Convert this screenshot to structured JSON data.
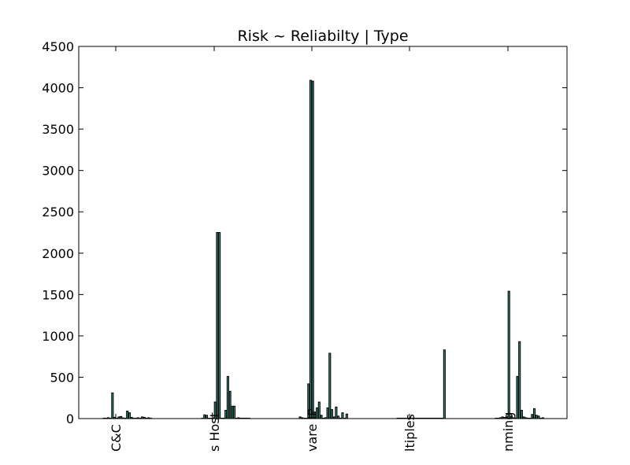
{
  "chart_data": {
    "type": "bar",
    "title": "Risk ~ Reliabilty | Type",
    "xlabel": "",
    "ylabel": "",
    "ylim": [
      0,
      4500
    ],
    "yticks": [
      0,
      500,
      1000,
      1500,
      2000,
      2500,
      3000,
      3500,
      4000,
      4500
    ],
    "grid": false,
    "categories": [
      "C&C",
      "s Host",
      "vare IP",
      "ltiples",
      "nming"
    ],
    "groups": [
      {
        "category": "C&C",
        "values": [
          5,
          5,
          10,
          5,
          310,
          15,
          5,
          20,
          25,
          8,
          5,
          90,
          70,
          15,
          5,
          5,
          10,
          5,
          20,
          15,
          5,
          10,
          5
        ]
      },
      {
        "category": "s Host",
        "values": [
          5,
          45,
          40,
          5,
          5,
          10,
          200,
          2250,
          2250,
          5,
          5,
          100,
          510,
          330,
          150,
          150,
          5,
          10,
          5,
          5,
          5,
          5,
          5
        ]
      },
      {
        "category": "vare IP",
        "values": [
          20,
          10,
          5,
          5,
          420,
          4090,
          4080,
          80,
          130,
          200,
          40,
          5,
          10,
          130,
          790,
          110,
          20,
          140,
          30,
          5,
          70,
          5,
          55
        ]
      },
      {
        "category": "ltiples",
        "values": [
          5,
          5,
          5,
          5,
          5,
          5,
          5,
          5,
          5,
          5,
          5,
          5,
          5,
          5,
          5,
          5,
          5,
          5,
          5,
          5,
          5,
          5,
          830
        ]
      },
      {
        "category": "nming",
        "values": [
          5,
          5,
          10,
          20,
          15,
          20,
          1540,
          30,
          10,
          5,
          510,
          930,
          100,
          20,
          10,
          5,
          5,
          50,
          120,
          40,
          30,
          5,
          10
        ]
      }
    ],
    "colors": {
      "bar_fill": "#3a8d7e",
      "bar_edge": "#000000",
      "axes": "#000000",
      "background": "#ffffff"
    }
  }
}
